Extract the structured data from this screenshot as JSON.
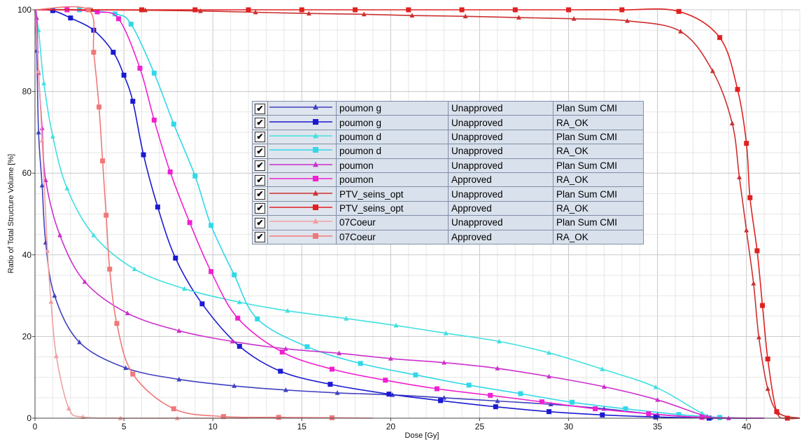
{
  "chart_data": {
    "type": "line",
    "title": "",
    "xlabel": "Dose [Gy]",
    "ylabel": "Ratio of Total Structure Volume [%]",
    "xlim": [
      0,
      43
    ],
    "ylim": [
      0,
      100
    ],
    "xticks": [
      0,
      5,
      10,
      15,
      20,
      25,
      30,
      35,
      40
    ],
    "yticks": [
      0,
      20,
      40,
      60,
      80,
      100
    ],
    "grid": true,
    "legend_position": "center",
    "series": [
      {
        "name": "poumon g",
        "status": "Unapproved",
        "plan": "Plan Sum CMI",
        "color": "#4040c0",
        "marker": "triangle",
        "points": [
          [
            0,
            100
          ],
          [
            0.1,
            90
          ],
          [
            0.2,
            70
          ],
          [
            0.4,
            57
          ],
          [
            0.6,
            43
          ],
          [
            1.1,
            30
          ],
          [
            2.5,
            18.6
          ],
          [
            5.1,
            12.3
          ],
          [
            8.1,
            9.5
          ],
          [
            11.2,
            7.9
          ],
          [
            14.1,
            6.9
          ],
          [
            17,
            6.2
          ],
          [
            20.1,
            5.7
          ],
          [
            23,
            5
          ],
          [
            26,
            4.2
          ],
          [
            29,
            3.4
          ],
          [
            32,
            2.3
          ],
          [
            35,
            0.9
          ],
          [
            38,
            0.1
          ],
          [
            41,
            0
          ]
        ]
      },
      {
        "name": "poumon g",
        "status": "Unapproved",
        "plan": "RA_OK",
        "color": "#1a1ad0",
        "marker": "square",
        "points": [
          [
            0,
            100
          ],
          [
            1,
            99.8
          ],
          [
            2,
            98
          ],
          [
            3.3,
            95
          ],
          [
            4.4,
            89.6
          ],
          [
            5,
            84
          ],
          [
            5.5,
            77.6
          ],
          [
            6.1,
            64.5
          ],
          [
            6.9,
            51.7
          ],
          [
            7.9,
            39.2
          ],
          [
            9.4,
            28
          ],
          [
            11.5,
            17.6
          ],
          [
            13.8,
            11.5
          ],
          [
            16.6,
            8.3
          ],
          [
            19.9,
            5.9
          ],
          [
            22.8,
            4.3
          ],
          [
            25.9,
            2.8
          ],
          [
            28.9,
            1.6
          ],
          [
            31.9,
            0.8
          ],
          [
            34.9,
            0.3
          ],
          [
            37.9,
            0
          ],
          [
            41,
            0
          ]
        ]
      },
      {
        "name": "poumon d",
        "status": "Unapproved",
        "plan": "Plan Sum CMI",
        "color": "#40e0e0",
        "marker": "triangle",
        "points": [
          [
            0,
            100
          ],
          [
            0.2,
            95
          ],
          [
            0.5,
            82
          ],
          [
            1,
            69
          ],
          [
            1.8,
            56.3
          ],
          [
            3.3,
            44.8
          ],
          [
            5.6,
            36.5
          ],
          [
            8.4,
            31.7
          ],
          [
            11.5,
            28.4
          ],
          [
            14.2,
            26.3
          ],
          [
            17.5,
            24.4
          ],
          [
            20.3,
            22.7
          ],
          [
            23.1,
            20.8
          ],
          [
            26.1,
            18.8
          ],
          [
            28.9,
            16
          ],
          [
            31.9,
            12
          ],
          [
            34.9,
            7.6
          ],
          [
            37.5,
            1.2
          ],
          [
            38.5,
            0
          ],
          [
            41,
            0
          ]
        ]
      },
      {
        "name": "poumon d",
        "status": "Unapproved",
        "plan": "RA_OK",
        "color": "#30d8e8",
        "marker": "square",
        "points": [
          [
            0,
            100
          ],
          [
            2.5,
            100
          ],
          [
            4.5,
            99
          ],
          [
            5.4,
            96.5
          ],
          [
            6.7,
            84.5
          ],
          [
            7.8,
            72
          ],
          [
            9,
            59.3
          ],
          [
            9.9,
            47.2
          ],
          [
            11.2,
            35.1
          ],
          [
            12.5,
            24.3
          ],
          [
            15.3,
            17.5
          ],
          [
            18.3,
            13.4
          ],
          [
            21.4,
            10.6
          ],
          [
            24.4,
            8.1
          ],
          [
            27.3,
            6
          ],
          [
            30.2,
            3.9
          ],
          [
            33.2,
            2.3
          ],
          [
            36.2,
            0.9
          ],
          [
            38.5,
            0.2
          ],
          [
            41,
            0
          ]
        ]
      },
      {
        "name": "poumon",
        "status": "Unapproved",
        "plan": "Plan Sum CMI",
        "color": "#cc30cc",
        "marker": "triangle",
        "points": [
          [
            0,
            100
          ],
          [
            0.1,
            98
          ],
          [
            0.2,
            84.5
          ],
          [
            0.4,
            71
          ],
          [
            0.6,
            58.3
          ],
          [
            1.4,
            44.8
          ],
          [
            2.8,
            33.4
          ],
          [
            5.2,
            25.7
          ],
          [
            8.1,
            21.4
          ],
          [
            11.1,
            18.8
          ],
          [
            14.1,
            17
          ],
          [
            17.1,
            15.9
          ],
          [
            20,
            14.6
          ],
          [
            23,
            13.6
          ],
          [
            26,
            12.2
          ],
          [
            28.9,
            10.2
          ],
          [
            32,
            7.7
          ],
          [
            35,
            4.5
          ],
          [
            37.8,
            0.4
          ],
          [
            39,
            0
          ],
          [
            41,
            0
          ]
        ]
      },
      {
        "name": "poumon",
        "status": "Approved",
        "plan": "RA_OK",
        "color": "#f020d0",
        "marker": "square",
        "points": [
          [
            0,
            100
          ],
          [
            1.8,
            100
          ],
          [
            3.5,
            99.5
          ],
          [
            4.7,
            97.8
          ],
          [
            5.9,
            85.7
          ],
          [
            6.7,
            73
          ],
          [
            7.6,
            60.3
          ],
          [
            8.7,
            47.9
          ],
          [
            9.9,
            35.9
          ],
          [
            11.4,
            24.5
          ],
          [
            13.9,
            16.2
          ],
          [
            16.7,
            12
          ],
          [
            19.7,
            9.3
          ],
          [
            22.6,
            7.2
          ],
          [
            25.6,
            5.6
          ],
          [
            28.5,
            4
          ],
          [
            31.5,
            2.3
          ],
          [
            34.5,
            1.1
          ],
          [
            37.5,
            0.2
          ],
          [
            41,
            0
          ]
        ]
      },
      {
        "name": "PTV_seins_opt",
        "status": "Unapproved",
        "plan": "Plan Sum CMI",
        "color": "#cc3030",
        "marker": "triangle",
        "points": [
          [
            0,
            100
          ],
          [
            3.2,
            100
          ],
          [
            6.2,
            99.9
          ],
          [
            9.3,
            99.7
          ],
          [
            12.4,
            99.4
          ],
          [
            15.4,
            99.1
          ],
          [
            18.5,
            98.9
          ],
          [
            21.2,
            98.6
          ],
          [
            24.2,
            98.4
          ],
          [
            27.2,
            98.1
          ],
          [
            30.3,
            97.8
          ],
          [
            33.3,
            97.3
          ],
          [
            36.3,
            94.7
          ],
          [
            38.1,
            85
          ],
          [
            39.2,
            72.2
          ],
          [
            39.6,
            59
          ],
          [
            40,
            46
          ],
          [
            40.4,
            33
          ],
          [
            40.7,
            19.8
          ],
          [
            41.2,
            7.2
          ],
          [
            41.8,
            1.3
          ],
          [
            43,
            0
          ]
        ]
      },
      {
        "name": "PTV_seins_opt",
        "status": "Approved",
        "plan": "RA_OK",
        "color": "#e02020",
        "marker": "square",
        "points": [
          [
            0,
            100
          ],
          [
            3,
            100
          ],
          [
            6,
            100
          ],
          [
            9,
            100
          ],
          [
            12,
            100
          ],
          [
            15,
            100
          ],
          [
            18,
            100
          ],
          [
            21,
            100
          ],
          [
            24,
            100
          ],
          [
            27,
            100
          ],
          [
            30,
            100
          ],
          [
            33,
            100
          ],
          [
            36.2,
            99.6
          ],
          [
            38.5,
            93.2
          ],
          [
            39.5,
            80.5
          ],
          [
            40,
            67.3
          ],
          [
            40.2,
            54
          ],
          [
            40.6,
            41
          ],
          [
            40.9,
            27.6
          ],
          [
            41.2,
            14.5
          ],
          [
            41.7,
            1.6
          ],
          [
            42.3,
            0
          ],
          [
            43,
            0
          ]
        ]
      },
      {
        "name": "07Coeur",
        "status": "Unapproved",
        "plan": "Plan Sum CMI",
        "color": "#f0a0a0",
        "marker": "triangle",
        "points": [
          [
            0,
            100
          ],
          [
            0.2,
            85
          ],
          [
            0.4,
            68
          ],
          [
            0.7,
            41
          ],
          [
            0.9,
            28.5
          ],
          [
            1.2,
            15.2
          ],
          [
            1.9,
            2.4
          ],
          [
            2.7,
            0.3
          ],
          [
            4.8,
            0
          ],
          [
            8,
            0
          ],
          [
            12,
            0
          ]
        ]
      },
      {
        "name": "07Coeur",
        "status": "Approved",
        "plan": "RA_OK",
        "color": "#f07878",
        "marker": "square",
        "points": [
          [
            0,
            100
          ],
          [
            3,
            100
          ],
          [
            3.3,
            89.6
          ],
          [
            3.6,
            76.2
          ],
          [
            3.8,
            63
          ],
          [
            4,
            49.7
          ],
          [
            4.2,
            36.5
          ],
          [
            4.6,
            23.2
          ],
          [
            5.5,
            10.8
          ],
          [
            7.8,
            2.3
          ],
          [
            10.6,
            0.4
          ],
          [
            13.7,
            0.2
          ],
          [
            16.7,
            0.1
          ],
          [
            19,
            0
          ]
        ]
      }
    ]
  }
}
